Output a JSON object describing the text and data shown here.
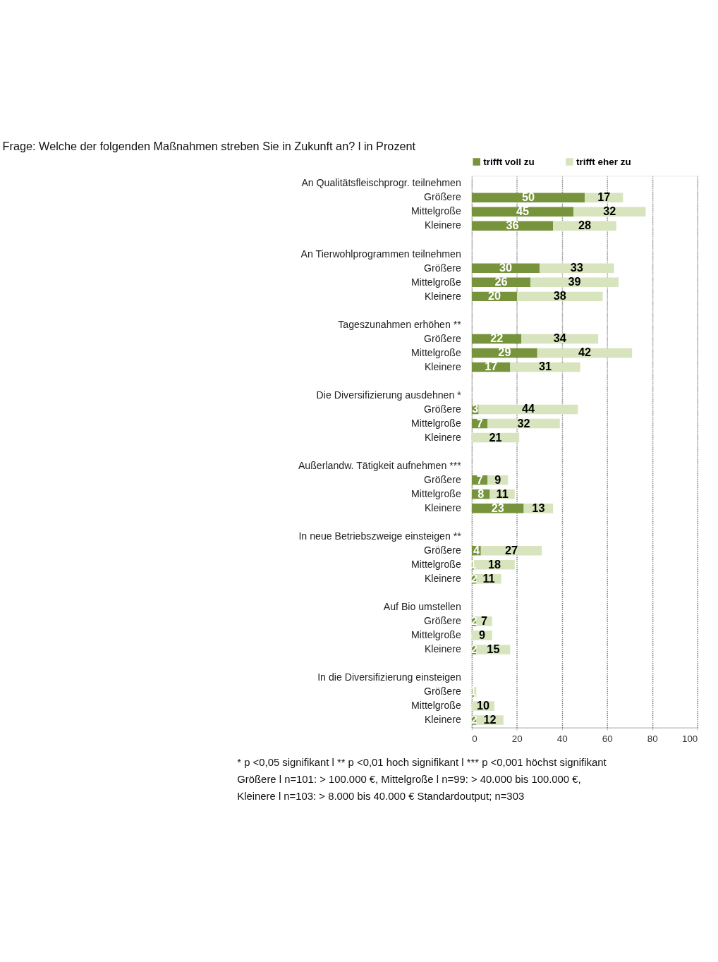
{
  "chart_data": {
    "type": "bar",
    "orientation": "horizontal",
    "stacked": true,
    "title": "Frage: Welche der folgenden Maßnahmen streben Sie in Zukunft an? l in Prozent",
    "categories": [
      "An Qualitätsfleischprogr. teilnehmen",
      "Größere",
      "Mittelgroße",
      "Kleinere",
      null,
      "An Tierwohlprogrammen teilnehmen",
      "Größere",
      "Mittelgroße",
      "Kleinere",
      null,
      "Tageszunahmen erhöhen **",
      "Größere",
      "Mittelgroße",
      "Kleinere",
      null,
      "Die Diversifizierung ausdehnen *",
      "Größere",
      "Mittelgroße",
      "Kleinere",
      null,
      "Außerlandw. Tätigkeit aufnehmen ***",
      "Größere",
      "Mittelgroße",
      "Kleinere",
      null,
      "In neue Betriebszweige einsteigen **",
      "Größere",
      "Mittelgroße",
      "Kleinere",
      null,
      "Auf Bio umstellen",
      "Größere",
      "Mittelgroße",
      "Kleinere",
      null,
      "In die Diversifizierung einsteigen",
      "Größere",
      "Mittelgroße",
      "Kleinere"
    ],
    "series": [
      {
        "name": "trifft voll zu",
        "color": "#77933c",
        "values": [
          null,
          50,
          45,
          36,
          null,
          null,
          30,
          26,
          20,
          null,
          null,
          22,
          29,
          17,
          null,
          null,
          3,
          7,
          0,
          null,
          null,
          7,
          8,
          23,
          null,
          null,
          4,
          1,
          2,
          null,
          null,
          2,
          0,
          2,
          null,
          null,
          1,
          0,
          2
        ],
        "value_labels": [
          null,
          "50",
          "45",
          "36",
          null,
          null,
          "30",
          "26",
          "20",
          null,
          null,
          "22",
          "29",
          "17",
          null,
          null,
          "3",
          "7",
          null,
          null,
          null,
          "7",
          "8",
          "23",
          null,
          null,
          "4",
          "1",
          "2",
          null,
          null,
          "2",
          null,
          "2",
          null,
          null,
          "1",
          null,
          "2"
        ]
      },
      {
        "name": "trifft eher zu",
        "color": "#d7e4bd",
        "values": [
          null,
          17,
          32,
          28,
          null,
          null,
          33,
          39,
          38,
          null,
          null,
          34,
          42,
          31,
          null,
          null,
          44,
          32,
          21,
          null,
          null,
          9,
          11,
          13,
          null,
          null,
          27,
          18,
          11,
          null,
          null,
          7,
          9,
          15,
          null,
          null,
          1,
          10,
          12
        ],
        "value_labels": [
          null,
          "17",
          "32",
          "28",
          null,
          null,
          "33",
          "39",
          "38",
          null,
          null,
          "34",
          "42",
          "31",
          null,
          null,
          "44",
          "32",
          "21",
          null,
          null,
          "9",
          "11",
          "13",
          null,
          null,
          "27",
          "18",
          "11",
          null,
          null,
          "7",
          "9",
          "15",
          null,
          null,
          null,
          "10",
          "12"
        ]
      }
    ],
    "xlim": [
      0,
      100
    ],
    "xticks": [
      0,
      20,
      40,
      60,
      80,
      100
    ],
    "grid": "x",
    "legend": "top",
    "annotations": [
      "* p <0,05 signifikant l ** p <0,01 hoch signifikant l *** p <0,001 höchst signifikant",
      "Größere l n=101: > 100.000 €, Mittelgroße l n=99: > 40.000 bis 100.000 €,",
      "Kleinere l n=103: > 8.000 bis 40.000 € Standardoutput; n=303"
    ]
  }
}
